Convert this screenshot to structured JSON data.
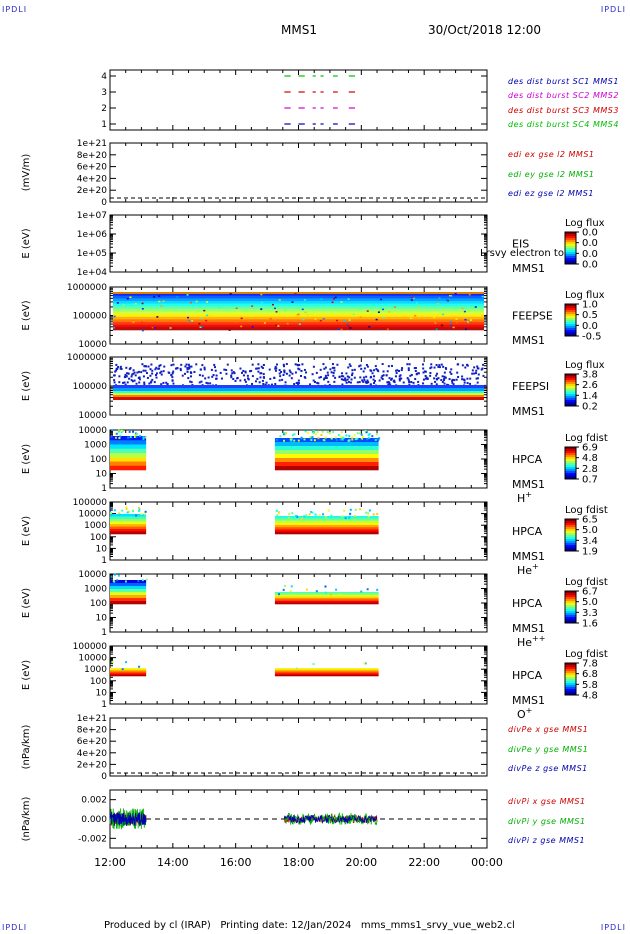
{
  "corner_label": "IPDLI",
  "header": {
    "spacecraft": "MMS1",
    "datetime": "30/Oct/2018 12:00"
  },
  "footer": {
    "text": "Produced by cl (IRAP)   Printing date: 12/Jan/2024   mms_mms1_srvy_vue_web2.cl"
  },
  "colors": {
    "mms1": "#0000b0",
    "mms2": "#d000d0",
    "mms3": "#d00000",
    "mms4": "#00c000",
    "x_comp": "#d00000",
    "y_comp": "#00b000",
    "z_comp": "#0000b0"
  },
  "chart_data": [
    {
      "id": "burst",
      "type": "line",
      "ylabel": "",
      "ytick_labels": [
        "1",
        "2",
        "3",
        "4"
      ],
      "ylim": [
        0.5,
        4.5
      ],
      "series": [
        {
          "name": "des dist burst SC1 MMS1",
          "y": 1
        },
        {
          "name": "des dist burst SC2 MMS2",
          "y": 2
        },
        {
          "name": "des dist burst SC3 MMS3",
          "y": 3
        },
        {
          "name": "des dist burst SC4 MMS4",
          "y": 4
        }
      ],
      "segments_hours": [
        [
          17.55,
          17.75
        ],
        [
          18.0,
          18.2
        ],
        [
          18.45,
          18.55
        ],
        [
          18.7,
          18.8
        ],
        [
          19.1,
          19.25
        ],
        [
          19.6,
          19.8
        ]
      ]
    },
    {
      "id": "edi",
      "type": "line",
      "ylabel": "(mV/m)",
      "ytick_labels": [
        "0",
        "2e+20",
        "4e+20",
        "6e+20",
        "8e+20",
        "1e+21"
      ],
      "series": [
        {
          "name": "edi ex gse l2 MMS1"
        },
        {
          "name": "edi ey gse l2 MMS1"
        },
        {
          "name": "edi ez gse l2 MMS1"
        }
      ]
    },
    {
      "id": "eis",
      "type": "heatmap",
      "ylabel": "E (eV)",
      "ytick_labels": [
        "1e+04",
        "1e+05",
        "1e+06",
        "1e+07"
      ],
      "labels": [
        "EIS",
        "MMS1"
      ],
      "overlay_text": "Lrsvy electron to",
      "colorbar": {
        "title": "Log flux",
        "ticks": [
          "0.0",
          "0.0",
          "0.0",
          "0.0"
        ]
      }
    },
    {
      "id": "feepse",
      "type": "heatmap",
      "ylabel": "E (eV)",
      "ytick_labels": [
        "10000",
        "100000",
        "1000000"
      ],
      "labels": [
        "FEEPSE",
        "MMS1"
      ],
      "colorbar": {
        "title": "Log flux",
        "ticks": [
          "1.0",
          "0.5",
          "0.0",
          "-0.5"
        ]
      }
    },
    {
      "id": "feepsi",
      "type": "heatmap",
      "ylabel": "E (eV)",
      "ytick_labels": [
        "10000",
        "100000",
        "1000000"
      ],
      "labels": [
        "FEEPSI",
        "MMS1"
      ],
      "colorbar": {
        "title": "Log flux",
        "ticks": [
          "3.8",
          "2.6",
          "1.4",
          "0.2"
        ]
      }
    },
    {
      "id": "hpca_h",
      "type": "heatmap",
      "ylabel": "E (eV)",
      "ytick_labels": [
        "1",
        "10",
        "100",
        "1000",
        "10000"
      ],
      "labels": [
        "HPCA",
        "MMS1",
        "H+"
      ],
      "colorbar": {
        "title": "Log fdist",
        "ticks": [
          "6.9",
          "4.8",
          "2.8",
          "0.7"
        ]
      }
    },
    {
      "id": "hpca_he",
      "type": "heatmap",
      "ylabel": "E (eV)",
      "ytick_labels": [
        "1",
        "10",
        "100",
        "1000",
        "10000",
        "100000"
      ],
      "labels": [
        "HPCA",
        "MMS1",
        "He+"
      ],
      "colorbar": {
        "title": "Log fdist",
        "ticks": [
          "6.5",
          "5.0",
          "3.4",
          "1.9"
        ]
      }
    },
    {
      "id": "hpca_hepp",
      "type": "heatmap",
      "ylabel": "E (eV)",
      "ytick_labels": [
        "1",
        "10",
        "100",
        "1000",
        "10000"
      ],
      "labels": [
        "HPCA",
        "MMS1",
        "He++"
      ],
      "colorbar": {
        "title": "Log fdist",
        "ticks": [
          "6.7",
          "5.0",
          "3.3",
          "1.6"
        ]
      }
    },
    {
      "id": "hpca_o",
      "type": "heatmap",
      "ylabel": "E (eV)",
      "ytick_labels": [
        "1",
        "10",
        "100",
        "1000",
        "10000",
        "100000"
      ],
      "labels": [
        "HPCA",
        "MMS1",
        "O+"
      ],
      "colorbar": {
        "title": "Log fdist",
        "ticks": [
          "7.8",
          "6.8",
          "5.8",
          "4.8"
        ]
      }
    },
    {
      "id": "divpe",
      "type": "line",
      "ylabel": "(nPa/km)",
      "ytick_labels": [
        "0",
        "2e+20",
        "4e+20",
        "6e+20",
        "8e+20",
        "1e+21"
      ],
      "series": [
        {
          "name": "divPe x gse MMS1"
        },
        {
          "name": "divPe y gse MMS1"
        },
        {
          "name": "divPe z gse MMS1"
        }
      ]
    },
    {
      "id": "divpi",
      "type": "line",
      "ylabel": "(nPa/km)",
      "ytick_labels": [
        "-0.002",
        "0.000",
        "0.002"
      ],
      "ylim": [
        -0.003,
        0.003
      ],
      "series": [
        {
          "name": "divPi x gse MMS1"
        },
        {
          "name": "divPi y gse MMS1"
        },
        {
          "name": "divPi z gse MMS1"
        }
      ]
    }
  ],
  "x_axis": {
    "tick_labels": [
      "12:00",
      "14:00",
      "16:00",
      "18:00",
      "20:00",
      "22:00",
      "00:00"
    ],
    "start_hour": 12,
    "end_hour": 24
  }
}
